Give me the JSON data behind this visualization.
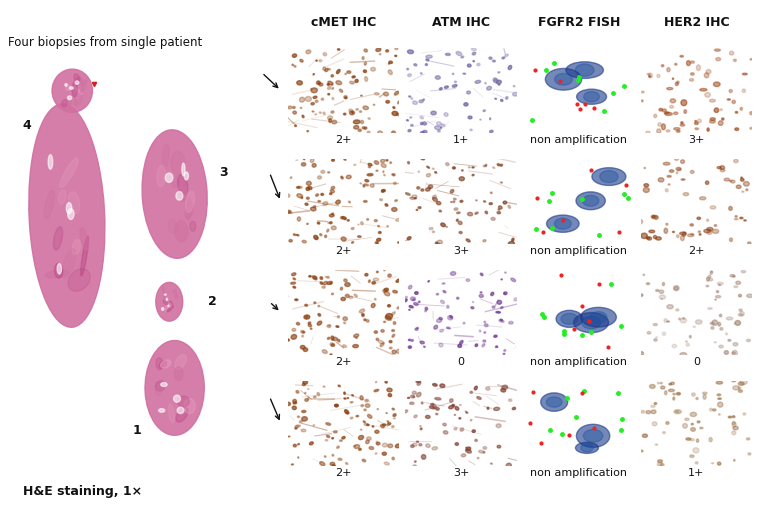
{
  "background_color": "#ffffff",
  "left_panel_bg": "#d8d8d8",
  "column_headers": [
    "cMET IHC",
    "ATM IHC",
    "FGFR2 FISH",
    "HER2 IHC"
  ],
  "row_scores": [
    [
      "2+",
      "1+",
      "non amplification",
      "3+"
    ],
    [
      "2+",
      "3+",
      "non amplification",
      "2+"
    ],
    [
      "2+",
      "0",
      "non amplification",
      "0"
    ],
    [
      "2+",
      "3+",
      "non amplification",
      "1+"
    ]
  ],
  "biopsy_labels": [
    "4",
    "3",
    "2",
    "1"
  ],
  "left_annotation": "Four biopsies from single patient",
  "he_label": "H&E staining, 1×",
  "annotation_font_size": 8.5,
  "header_font_size": 9,
  "score_font_size": 8,
  "biopsy_font_size": 9,
  "score_text_color": "#111111",
  "header_text_color": "#111111",
  "arrow_color": "#111111",
  "cmet_colors": [
    "#c8894a",
    "#b87838",
    "#c07840",
    "#b87040"
  ],
  "atm_colors": [
    "#c0b0d0",
    "#c09878",
    "#b0a0c0",
    "#c09880"
  ],
  "fgfr2_color": "#0a1060",
  "her2_colors": [
    "#c87030",
    "#c07030",
    "#d8d0c0",
    "#d0c8a8"
  ]
}
